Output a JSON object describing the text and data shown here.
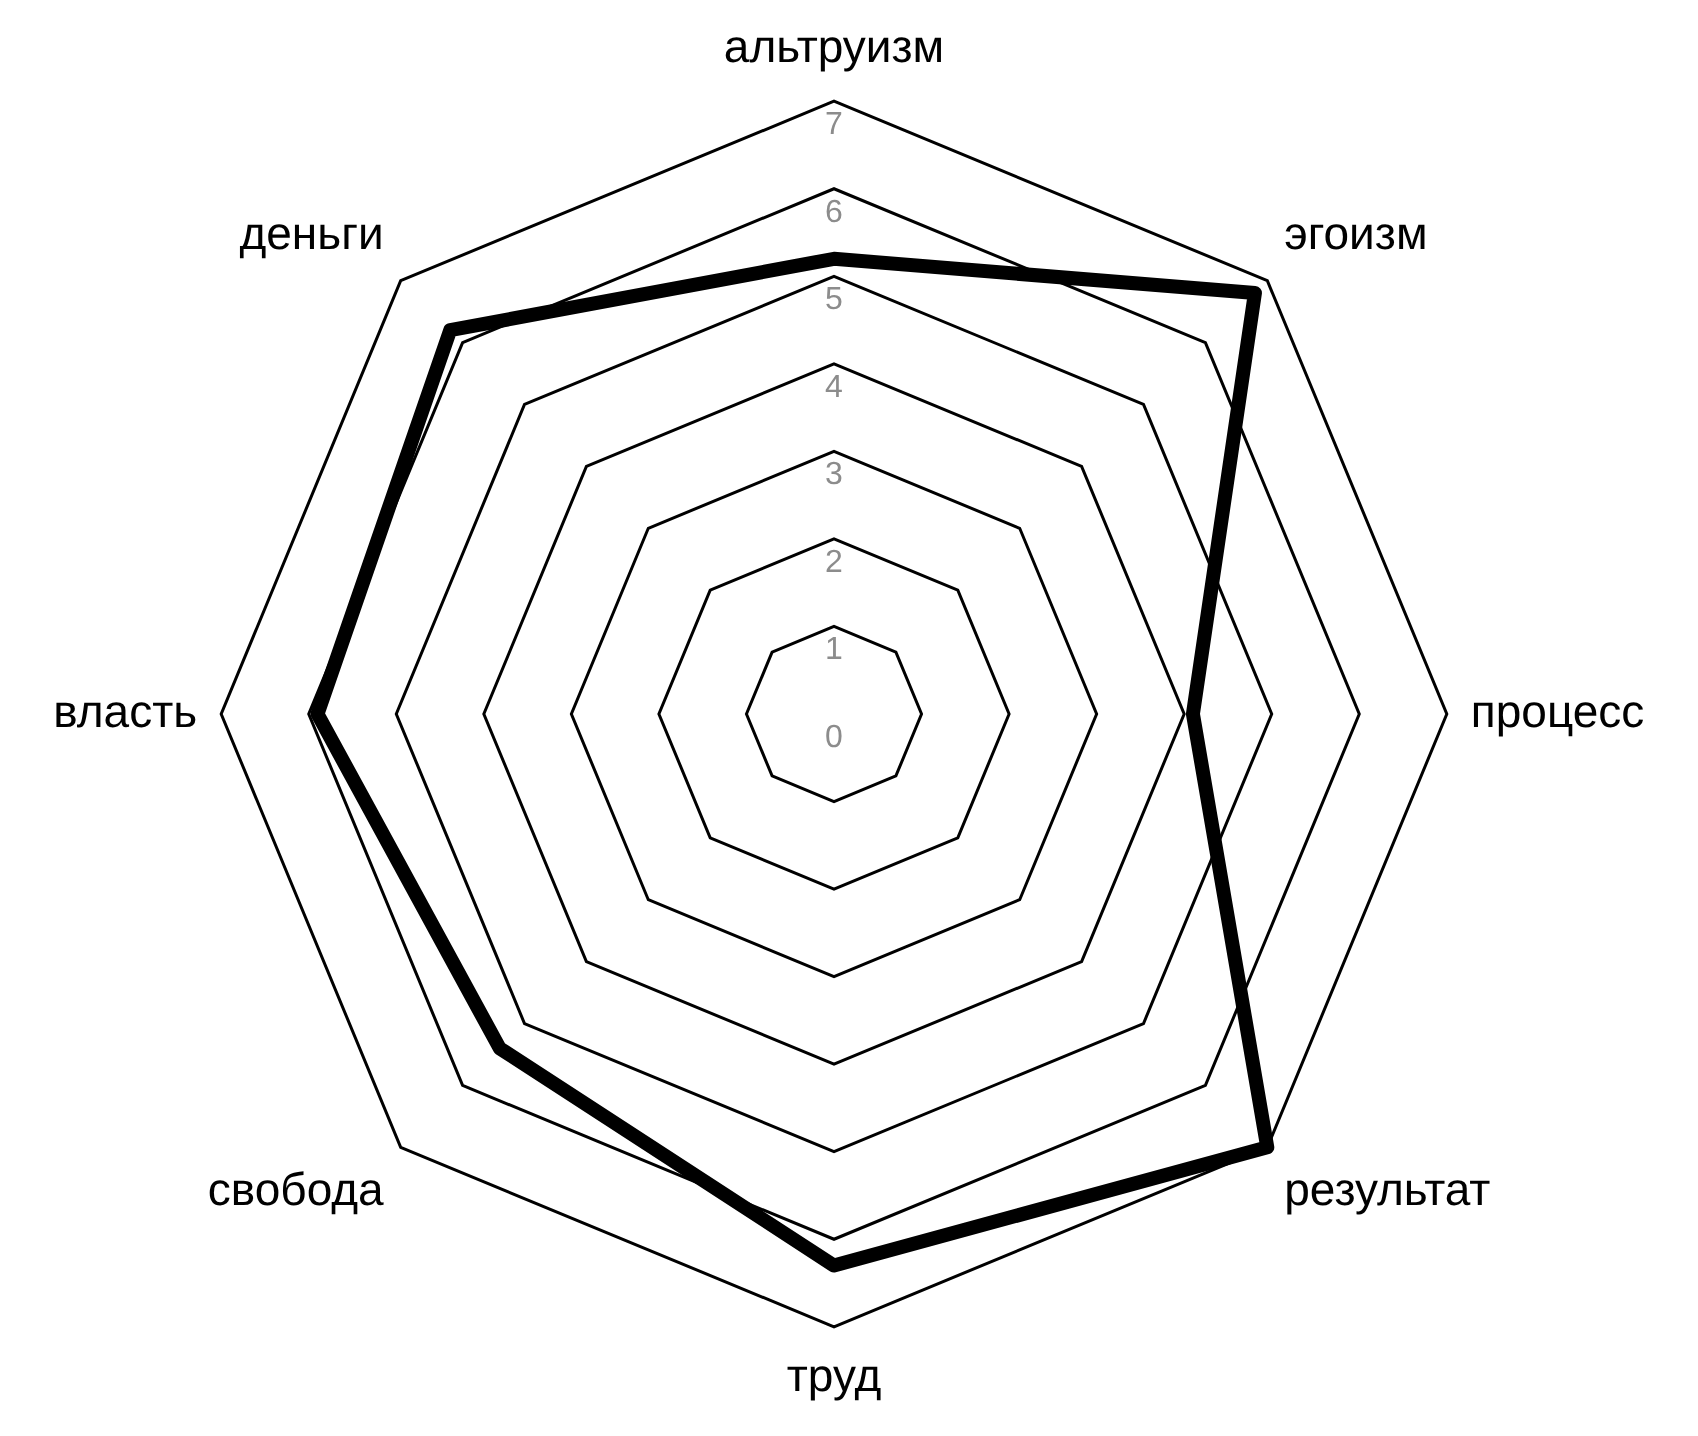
{
  "chart_data": {
    "type": "radar",
    "categories": [
      "альтруизм",
      "эгоизм",
      "процесс",
      "результат",
      "труд",
      "свобода",
      "власть",
      "деньги"
    ],
    "series": [
      {
        "color": "#000000",
        "values": [
          5.2,
          6.8,
          4.1,
          7.0,
          6.3,
          5.4,
          5.9,
          6.2
        ]
      }
    ],
    "ylim": [
      0,
      7
    ],
    "yticks": [
      0,
      1,
      2,
      3,
      4,
      5,
      6,
      7
    ],
    "grid": true,
    "legend": false,
    "marker": "none",
    "line_style": "solid"
  }
}
